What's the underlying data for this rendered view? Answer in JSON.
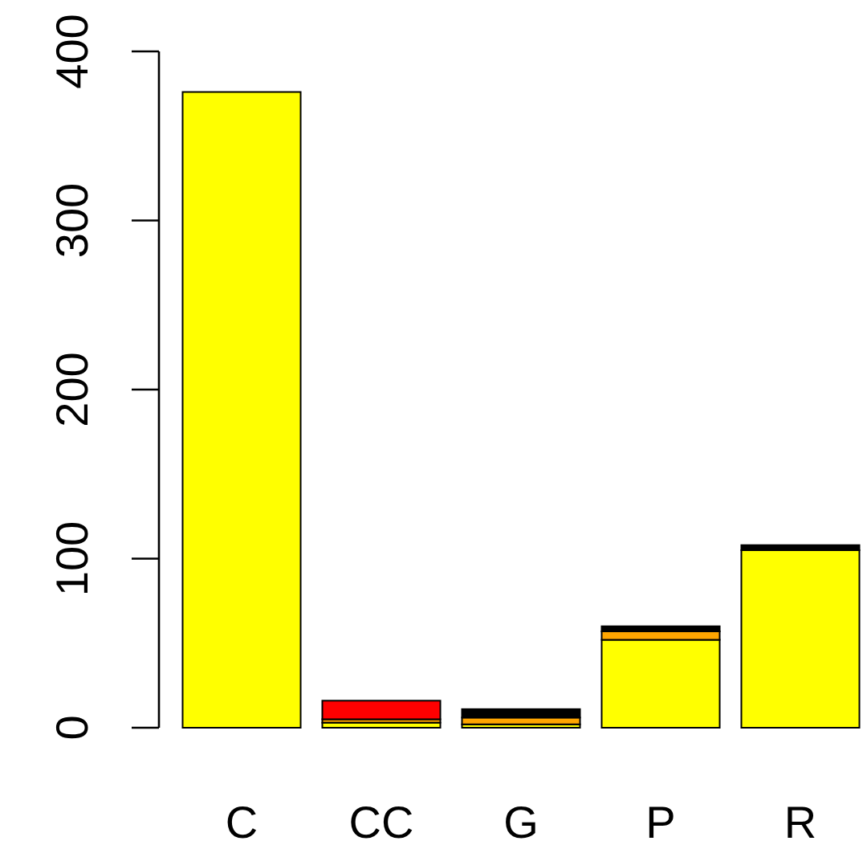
{
  "chart_data": {
    "type": "bar",
    "stacked": true,
    "categories": [
      "C",
      "CC",
      "G",
      "P",
      "R"
    ],
    "series": [
      {
        "color": "#ffff00",
        "values": [
          376,
          3,
          2,
          52,
          105
        ]
      },
      {
        "color": "#ffa500",
        "values": [
          null,
          2,
          4,
          5,
          null
        ]
      },
      {
        "color": "#ff0000",
        "values": [
          null,
          11,
          null,
          null,
          null
        ]
      },
      {
        "color": "#000000",
        "values": [
          null,
          null,
          5,
          3,
          3
        ]
      }
    ],
    "ylim": [
      0,
      400
    ],
    "yticks": [
      0,
      100,
      200,
      300,
      400
    ]
  }
}
